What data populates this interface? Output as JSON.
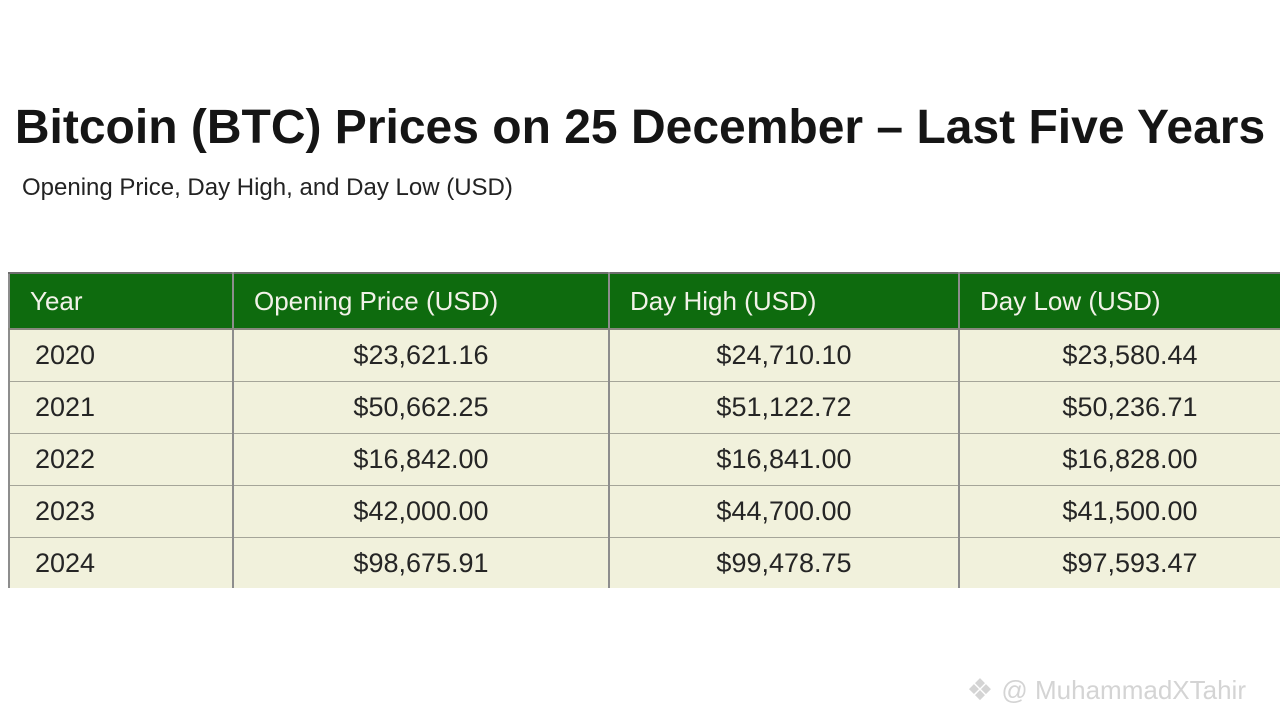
{
  "page": {
    "title": "Bitcoin (BTC) Prices on 25 December – Last Five Years",
    "subtitle": "Opening Price, Day High, and Day Low (USD)"
  },
  "chart_data": {
    "type": "table",
    "title": "Bitcoin (BTC) Prices on 25 December – Last Five Years",
    "subtitle": "Opening Price, Day High, and Day Low (USD)",
    "columns": [
      "Year",
      "Opening Price (USD)",
      "Day High (USD)",
      "Day Low (USD)"
    ],
    "rows": [
      [
        "2020",
        "$23,621.16",
        "$24,710.10",
        "$23,580.44"
      ],
      [
        "2021",
        "$50,662.25",
        "$51,122.72",
        "$50,236.71"
      ],
      [
        "2022",
        "$16,842.00",
        "$16,841.00",
        "$16,828.00"
      ],
      [
        "2023",
        "$42,000.00",
        "$44,700.00",
        "$41,500.00"
      ],
      [
        "2024",
        "$98,675.91",
        "$99,478.75",
        "$97,593.47"
      ]
    ],
    "years": [
      2020,
      2021,
      2022,
      2023,
      2024
    ],
    "opening_price_usd": [
      23621.16,
      50662.25,
      16842.0,
      42000.0,
      98675.91
    ],
    "day_high_usd": [
      24710.1,
      51122.72,
      16841.0,
      44700.0,
      99478.75
    ],
    "day_low_usd": [
      23580.44,
      50236.71,
      16828.0,
      41500.0,
      97593.47
    ]
  },
  "watermark": {
    "icon": "❖",
    "text": "@ MuhammadXTahir"
  },
  "colors": {
    "header_bg": "#0e6b0e",
    "header_text": "#f2f2e8",
    "row_bg": "#f1f1dc",
    "border_gray": "#8d8d8d",
    "title_text": "#151515",
    "watermark_text": "#d4d4d4"
  }
}
